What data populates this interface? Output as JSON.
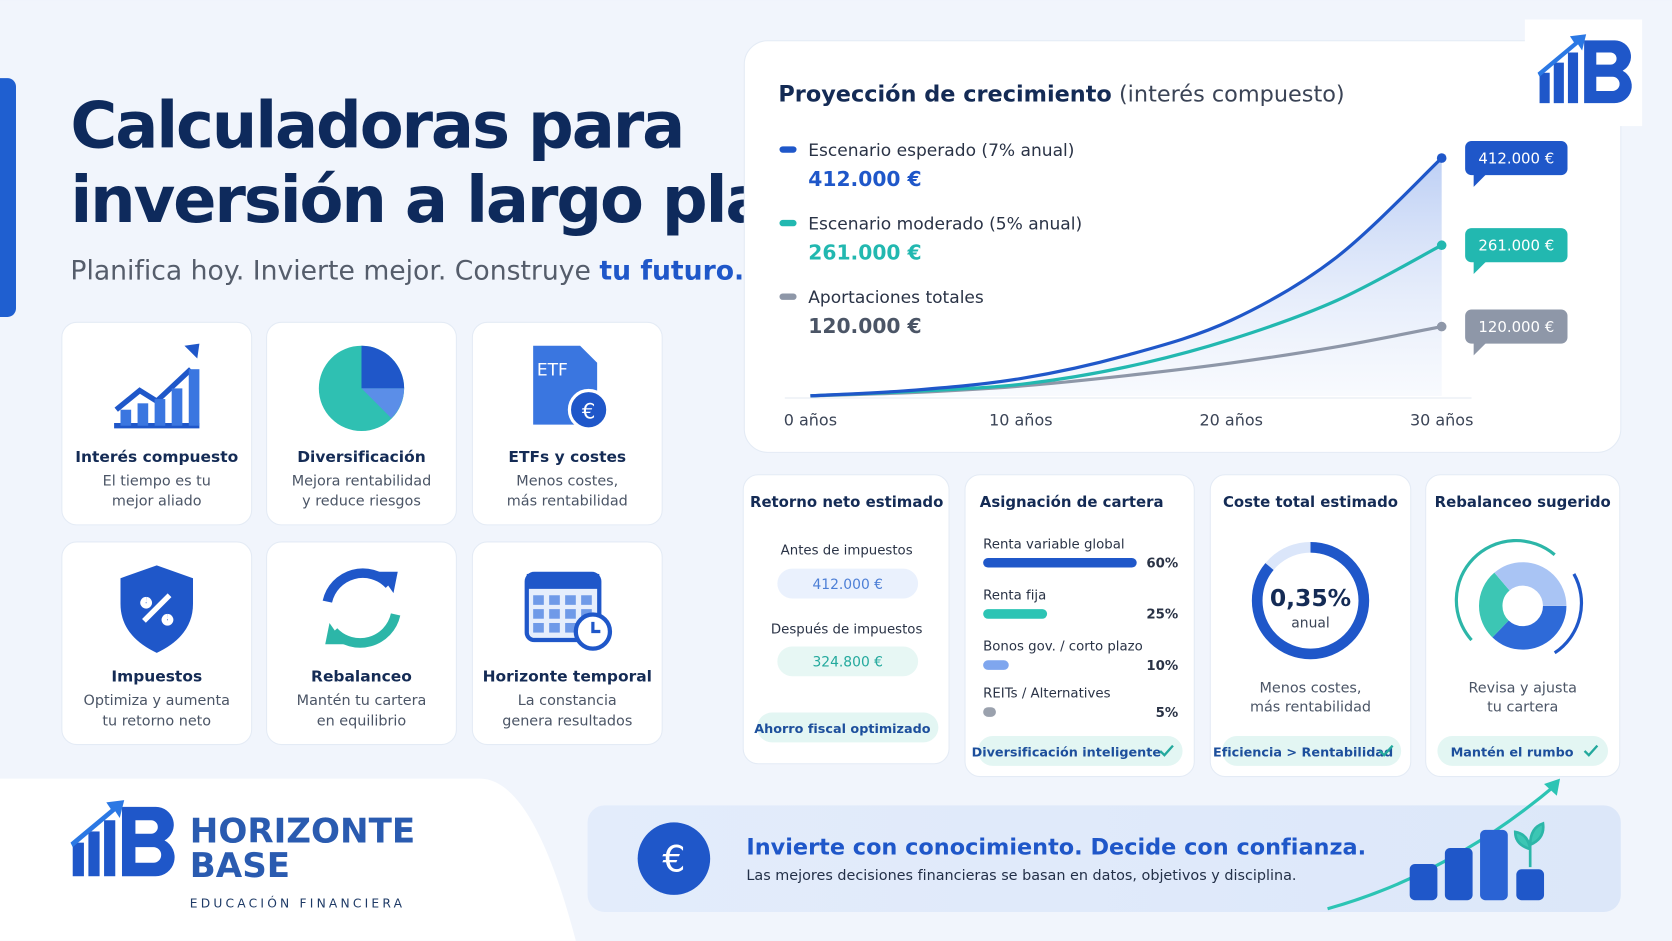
{
  "header": {
    "title_lines": [
      "Calculadoras para",
      "inversión a largo plazo"
    ],
    "subtitle": "Planifica hoy. Invierte mejor. Construye",
    "subtitle_highlight": "tu futuro."
  },
  "features": [
    {
      "title": "Interés compuesto",
      "lines": [
        "El tiempo es tu",
        "mejor aliado"
      ]
    },
    {
      "title": "Diversificación",
      "lines": [
        "Mejora rentabilidad",
        "y reduce riesgos"
      ]
    },
    {
      "title": "ETFs y costes",
      "lines": [
        "Menos costes,",
        "más rentabilidad"
      ],
      "icon_text": "ETF"
    },
    {
      "title": "Impuestos",
      "lines": [
        "Optimiza y aumenta",
        "tu retorno neto"
      ]
    },
    {
      "title": "Rebalanceo",
      "lines": [
        "Mantén tu cartera",
        "en equilibrio"
      ]
    },
    {
      "title": "Horizonte temporal",
      "lines": [
        "La constancia",
        "genera resultados"
      ]
    }
  ],
  "chart_data": {
    "type": "line",
    "title": "Proyección de crecimiento",
    "subtitle": "(interés compuesto)",
    "x": [
      0,
      5,
      10,
      15,
      20,
      25,
      30
    ],
    "xticks": [
      {
        "value": 0,
        "label": "0 años"
      },
      {
        "value": 10,
        "label": "10 años"
      },
      {
        "value": 20,
        "label": "20 años"
      },
      {
        "value": 30,
        "label": "30 años"
      }
    ],
    "series": [
      {
        "name": "Escenario esperado (7% anual)",
        "color": "#1f57c9",
        "values": [
          0,
          10000,
          30000,
          70000,
          131000,
          240000,
          412000
        ],
        "value_labels": [
          null,
          null,
          null,
          null,
          null,
          null,
          "412.000 €"
        ]
      },
      {
        "name": "Escenario moderado (5% anual)",
        "color": "#22b8b0",
        "values": [
          0,
          8000,
          20000,
          50000,
          98000,
          165000,
          261000
        ],
        "value_labels": [
          null,
          null,
          null,
          null,
          null,
          null,
          "261.000 €"
        ]
      },
      {
        "name": "Aportaciones totales",
        "color": "#8e97a8",
        "values": [
          0,
          6000,
          17000,
          35000,
          57000,
          85000,
          120000
        ],
        "value_labels": [
          null,
          null,
          null,
          null,
          null,
          null,
          "120.000 €"
        ]
      }
    ]
  },
  "panels": {
    "net_return": {
      "title": "Retorno neto estimado",
      "items": [
        {
          "label": "Antes de impuestos",
          "value": "412.000 €"
        },
        {
          "label": "Después de impuestos",
          "value": "324.800 €"
        }
      ],
      "badge": "Ahorro fiscal optimizado"
    },
    "allocation": {
      "title": "Asignación de cartera",
      "items": [
        {
          "name": "Renta variable global",
          "value": 60,
          "label": "60%",
          "color": "#1f57c9"
        },
        {
          "name": "Renta fija",
          "value": 25,
          "label": "25%",
          "color": "#2cc4b4"
        },
        {
          "name": "Bonos gov. / corto plazo",
          "value": 10,
          "label": "10%",
          "color": "#7fa6ee"
        },
        {
          "name": "REITs / Alternatives",
          "value": 5,
          "label": "5%",
          "color": "#9aa1ad"
        }
      ],
      "badge": "Diversificación inteligente"
    },
    "cost": {
      "title": "Coste total estimado",
      "value": "0,35%",
      "unit": "anual",
      "lines": [
        "Menos costes,",
        "más rentabilidad"
      ],
      "badge": "Eficiencia > Rentabilidad"
    },
    "rebalance": {
      "title": "Rebalanceo sugerido",
      "lines": [
        "Revisa y ajusta",
        "tu cartera"
      ],
      "badge": "Mantén el rumbo"
    }
  },
  "brand": {
    "name_lines": [
      "HORIZONTE",
      "BASE"
    ],
    "tagline": "EDUCACIÓN FINANCIERA"
  },
  "banner": {
    "headline": "Invierte con conocimiento. Decide con confianza.",
    "text": "Las mejores decisiones financieras se basan en datos, objetivos y disciplina.",
    "icon": "€"
  }
}
